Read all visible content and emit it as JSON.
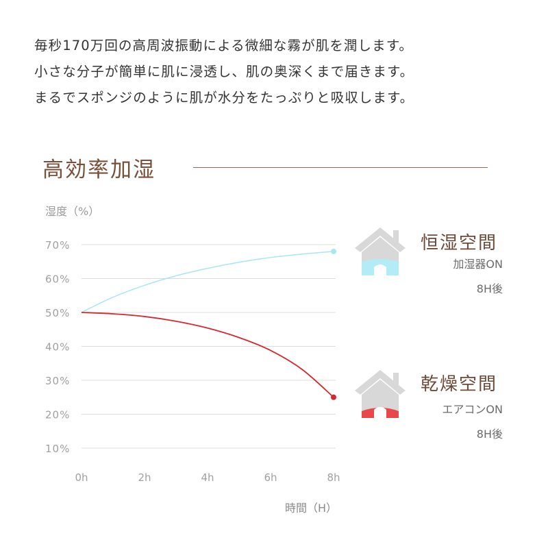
{
  "intro": {
    "lines": [
      "毎秒170万回の高周波振動による微細な霧が肌を潤します。",
      "小さな分子が簡単に肌に浸透し、肌の奥深くまで届きます。",
      "まるでスポンジのように肌が水分をたっぷりと吸収します。"
    ]
  },
  "section": {
    "title": "高効率加湿"
  },
  "chart_data": {
    "type": "line",
    "ylabel": "湿度（%）",
    "xlabel": "時間（H）",
    "y_ticks": [
      "70%",
      "60%",
      "50%",
      "40%",
      "30%",
      "20%",
      "10%"
    ],
    "y_tick_values": [
      70,
      60,
      50,
      40,
      30,
      20,
      10
    ],
    "x_ticks": [
      "0h",
      "2h",
      "4h",
      "6h",
      "8h"
    ],
    "x_tick_values": [
      0,
      2,
      4,
      6,
      8
    ],
    "xlim": [
      0,
      8
    ],
    "ylim": [
      10,
      70
    ],
    "grid": true,
    "series": [
      {
        "name": "恒湿空間",
        "color": "#a8e6f2",
        "x": [
          0,
          1,
          2,
          3,
          4,
          5,
          6,
          7,
          8
        ],
        "y": [
          50,
          54.5,
          58,
          60.8,
          63,
          64.8,
          66.2,
          67.2,
          68
        ]
      },
      {
        "name": "乾燥空間",
        "color": "#d9262c",
        "x": [
          0,
          1,
          2,
          3,
          4,
          5,
          6,
          7,
          8
        ],
        "y": [
          50,
          49.6,
          48.8,
          47.4,
          45.4,
          42.6,
          38.8,
          33.2,
          25
        ]
      }
    ]
  },
  "legend": {
    "humid": {
      "title": "恒湿空間",
      "sub1": "加湿器ON",
      "sub2": "8H後",
      "fill_color": "#b3ecf7"
    },
    "dry": {
      "title": "乾燥空間",
      "sub1": "エアコンON",
      "sub2": "8H後",
      "fill_color": "#e8474c"
    }
  }
}
